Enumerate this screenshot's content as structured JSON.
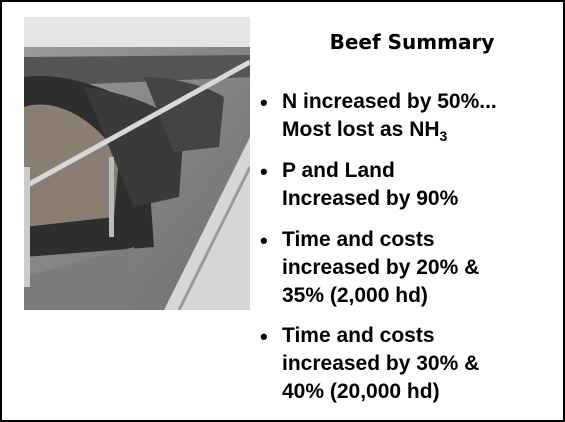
{
  "title": "Beef Summary",
  "bullets": [
    {
      "lines": [
        "N increased by 50%...",
        "Most lost as NH"
      ],
      "subscript": "3"
    },
    {
      "lines": [
        "P and Land",
        "Increased by 90%"
      ]
    },
    {
      "lines": [
        "Time and costs",
        "increased by 20% &",
        "35% (2,000 hd)"
      ]
    },
    {
      "lines": [
        "Time and costs",
        "increased by 30% &",
        "40% (20,000 hd)"
      ]
    }
  ]
}
